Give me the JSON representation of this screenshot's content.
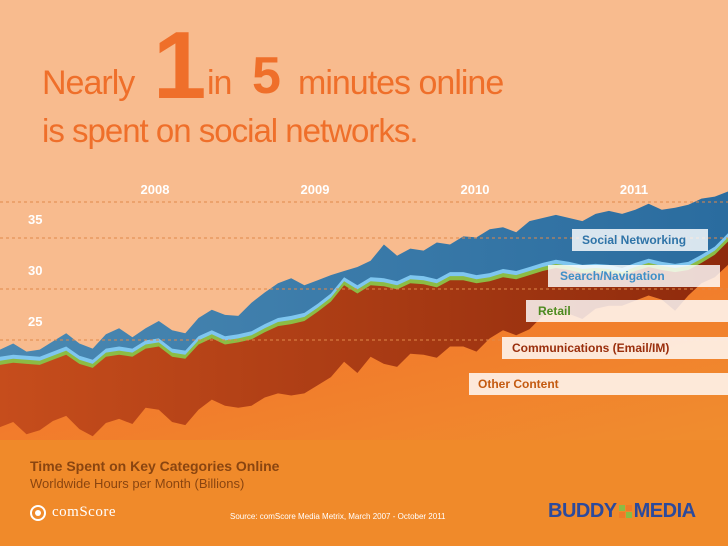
{
  "headline": {
    "nearly": "Nearly",
    "one": "1",
    "in": "in",
    "five": "5",
    "minutes": "minutes online",
    "line2": "is spent on social networks."
  },
  "footer": {
    "title": "Time Spent on Key Categories Online",
    "subtitle": "Worldwide Hours per Month (Billions)",
    "source": "Source: comScore Media Metrix, March 2007 - October 2011",
    "comscore_logo": "comScore",
    "buddy_logo_left": "BUDDY",
    "buddy_logo_right": "MEDIA"
  },
  "colors": {
    "background": "#f8bb8e",
    "headline": "#ef6f2a",
    "other_content": "#f07a28",
    "communications": "#b03a12",
    "retail": "#8cbc44",
    "search": "#7fc6ef",
    "social": "#2f74a8"
  },
  "chart_data": {
    "type": "area",
    "stacked": true,
    "x_years": [
      "2008",
      "2009",
      "2010",
      "2011"
    ],
    "x_range": [
      "2007-03",
      "2011-10"
    ],
    "y_ticks": [
      25,
      30,
      35
    ],
    "grid": "dashed horizontal lines at 25, 30 and 35 plus a dashed line under the year labels",
    "series": [
      {
        "name": "Other Content",
        "color": "#f07a28",
        "top": [
          14.5,
          15.0,
          13.8,
          14.2,
          15.1,
          15.6,
          14.3,
          13.6,
          14.9,
          15.3,
          14.8,
          16.4,
          16.2,
          15.0,
          14.7,
          16.2,
          17.2,
          16.6,
          16.4,
          16.6,
          17.4,
          17.8,
          17.6,
          17.8,
          18.6,
          19.4,
          20.9,
          19.8,
          21.4,
          20.7,
          20.4,
          21.7,
          21.6,
          21.3,
          22.4,
          22.4,
          21.9,
          23.2,
          24.0,
          23.5,
          24.1,
          25.4,
          26.3,
          25.6,
          25.1,
          26.1,
          26.4,
          26.4,
          26.9,
          27.4,
          27.0,
          25.9,
          27.4,
          28.6,
          29.2,
          30.4
        ]
      },
      {
        "name": "Communications (Email/IM)",
        "color": "#b03a12",
        "top": [
          20.6,
          20.8,
          20.7,
          20.6,
          21.1,
          21.6,
          20.7,
          20.3,
          21.4,
          21.6,
          21.4,
          22.2,
          22.4,
          21.4,
          21.2,
          22.6,
          23.2,
          22.6,
          22.8,
          23.1,
          23.8,
          24.4,
          24.6,
          24.9,
          25.8,
          26.8,
          28.4,
          27.6,
          28.4,
          28.3,
          28.0,
          28.6,
          28.5,
          28.2,
          28.9,
          28.9,
          28.6,
          28.8,
          29.2,
          29.0,
          29.4,
          29.8,
          30.1,
          29.9,
          29.6,
          29.7,
          29.6,
          29.3,
          29.8,
          30.2,
          29.9,
          29.7,
          29.9,
          30.6,
          31.4,
          32.7
        ]
      },
      {
        "name": "Retail",
        "color": "#8cbc44",
        "top": [
          21.0,
          21.2,
          21.1,
          21.0,
          21.5,
          22.0,
          21.1,
          20.7,
          21.8,
          22.0,
          21.8,
          22.6,
          22.8,
          21.8,
          21.6,
          23.0,
          23.6,
          23.0,
          23.2,
          23.5,
          24.2,
          24.8,
          25.0,
          25.3,
          26.2,
          27.2,
          28.8,
          28.0,
          28.8,
          28.7,
          28.4,
          29.0,
          28.9,
          28.6,
          29.3,
          29.3,
          29.0,
          29.2,
          29.6,
          29.4,
          29.8,
          30.2,
          30.5,
          30.3,
          30.0,
          30.1,
          30.0,
          29.7,
          30.2,
          30.6,
          30.3,
          30.1,
          30.3,
          31.0,
          31.8,
          33.1
        ]
      },
      {
        "name": "Search/Navigation",
        "color": "#7fc6ef",
        "top": [
          21.4,
          21.6,
          21.5,
          21.4,
          21.9,
          22.4,
          21.5,
          21.1,
          22.2,
          22.4,
          22.2,
          23.0,
          23.2,
          22.2,
          22.0,
          23.4,
          24.0,
          23.4,
          23.6,
          23.9,
          24.6,
          25.2,
          25.4,
          25.7,
          26.6,
          27.6,
          29.2,
          28.4,
          29.2,
          29.1,
          28.8,
          29.4,
          29.3,
          29.0,
          29.7,
          29.7,
          29.4,
          29.6,
          30.0,
          29.8,
          30.2,
          30.6,
          30.9,
          30.7,
          30.4,
          30.5,
          30.4,
          30.1,
          30.6,
          31.0,
          30.7,
          30.5,
          30.7,
          31.4,
          32.2,
          33.5
        ]
      },
      {
        "name": "Social Networking",
        "color": "#2f74a8",
        "top": [
          22.1,
          22.7,
          21.9,
          22.1,
          22.9,
          23.7,
          22.7,
          22.2,
          23.6,
          24.2,
          23.3,
          24.2,
          24.9,
          24.0,
          23.7,
          25.2,
          26.0,
          25.5,
          25.4,
          26.7,
          27.7,
          28.6,
          29.1,
          28.4,
          28.9,
          29.4,
          29.8,
          30.2,
          30.8,
          32.4,
          31.3,
          32.0,
          31.8,
          32.6,
          32.4,
          33.2,
          33.1,
          33.9,
          34.1,
          33.6,
          34.7,
          35.0,
          35.3,
          35.0,
          34.7,
          35.4,
          35.7,
          35.4,
          35.8,
          36.4,
          35.8,
          36.0,
          36.3,
          36.9,
          37.1,
          37.6
        ]
      }
    ],
    "labels": [
      "Social Networking",
      "Search/Navigation",
      "Retail",
      "Communications (Email/IM)",
      "Other Content"
    ]
  }
}
